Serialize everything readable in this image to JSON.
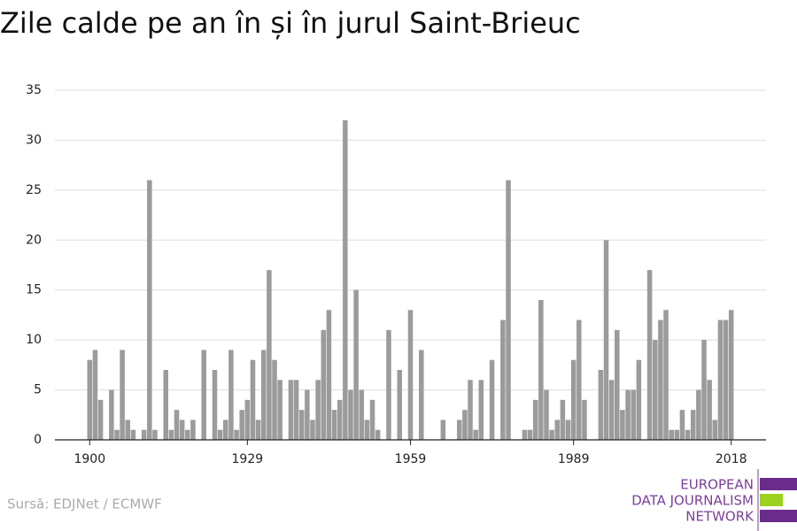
{
  "chart_data": {
    "type": "bar",
    "title": "Zile calde pe an în și în jurul Saint-Brieuc",
    "source": "Sursă: EDJNet / ECMWF",
    "logo": [
      "EUROPEAN",
      "DATA JOURNALISM",
      "NETWORK"
    ],
    "color": "#9b9b9b",
    "x": [
      1900,
      1901,
      1902,
      1903,
      1904,
      1905,
      1906,
      1907,
      1908,
      1909,
      1910,
      1911,
      1912,
      1913,
      1914,
      1915,
      1916,
      1917,
      1918,
      1919,
      1920,
      1921,
      1922,
      1923,
      1924,
      1925,
      1926,
      1927,
      1928,
      1929,
      1930,
      1931,
      1932,
      1933,
      1934,
      1935,
      1936,
      1937,
      1938,
      1939,
      1940,
      1941,
      1942,
      1943,
      1944,
      1945,
      1946,
      1947,
      1948,
      1949,
      1950,
      1951,
      1952,
      1953,
      1954,
      1955,
      1956,
      1957,
      1958,
      1959,
      1960,
      1961,
      1962,
      1963,
      1964,
      1965,
      1966,
      1967,
      1968,
      1969,
      1970,
      1971,
      1972,
      1973,
      1974,
      1975,
      1976,
      1977,
      1978,
      1979,
      1980,
      1981,
      1982,
      1983,
      1984,
      1985,
      1986,
      1987,
      1988,
      1989,
      1990,
      1991,
      1992,
      1993,
      1994,
      1995,
      1996,
      1997,
      1998,
      1999,
      2000,
      2001,
      2002,
      2003,
      2004,
      2005,
      2006,
      2007,
      2008,
      2009,
      2010,
      2011,
      2012,
      2013,
      2014,
      2015,
      2016,
      2017,
      2018
    ],
    "values": [
      8,
      9,
      4,
      0,
      5,
      1,
      9,
      2,
      1,
      0,
      1,
      26,
      1,
      0,
      7,
      1,
      3,
      2,
      1,
      2,
      0,
      9,
      0,
      7,
      1,
      2,
      9,
      1,
      3,
      4,
      8,
      2,
      9,
      17,
      8,
      6,
      0,
      6,
      6,
      3,
      5,
      2,
      6,
      11,
      13,
      3,
      4,
      32,
      5,
      15,
      5,
      2,
      4,
      1,
      0,
      11,
      0,
      7,
      0,
      13,
      0,
      9,
      0,
      0,
      0,
      2,
      0,
      0,
      2,
      3,
      6,
      1,
      6,
      0,
      8,
      0,
      12,
      26,
      0,
      0,
      1,
      1,
      4,
      14,
      5,
      1,
      2,
      4,
      2,
      8,
      12,
      4,
      0,
      0,
      7,
      20,
      6,
      11,
      3,
      5,
      5,
      8,
      0,
      17,
      10,
      12,
      13,
      1,
      1,
      3,
      1,
      3,
      5,
      10,
      6,
      2,
      12,
      12,
      13
    ],
    "xlim": [
      1893.6,
      2024.4
    ],
    "xticks": [
      1900,
      1929,
      1959,
      1989,
      2018
    ],
    "ylim": [
      0,
      35
    ],
    "yticks": [
      0,
      5,
      10,
      15,
      20,
      25,
      30,
      35
    ],
    "grid": true
  }
}
